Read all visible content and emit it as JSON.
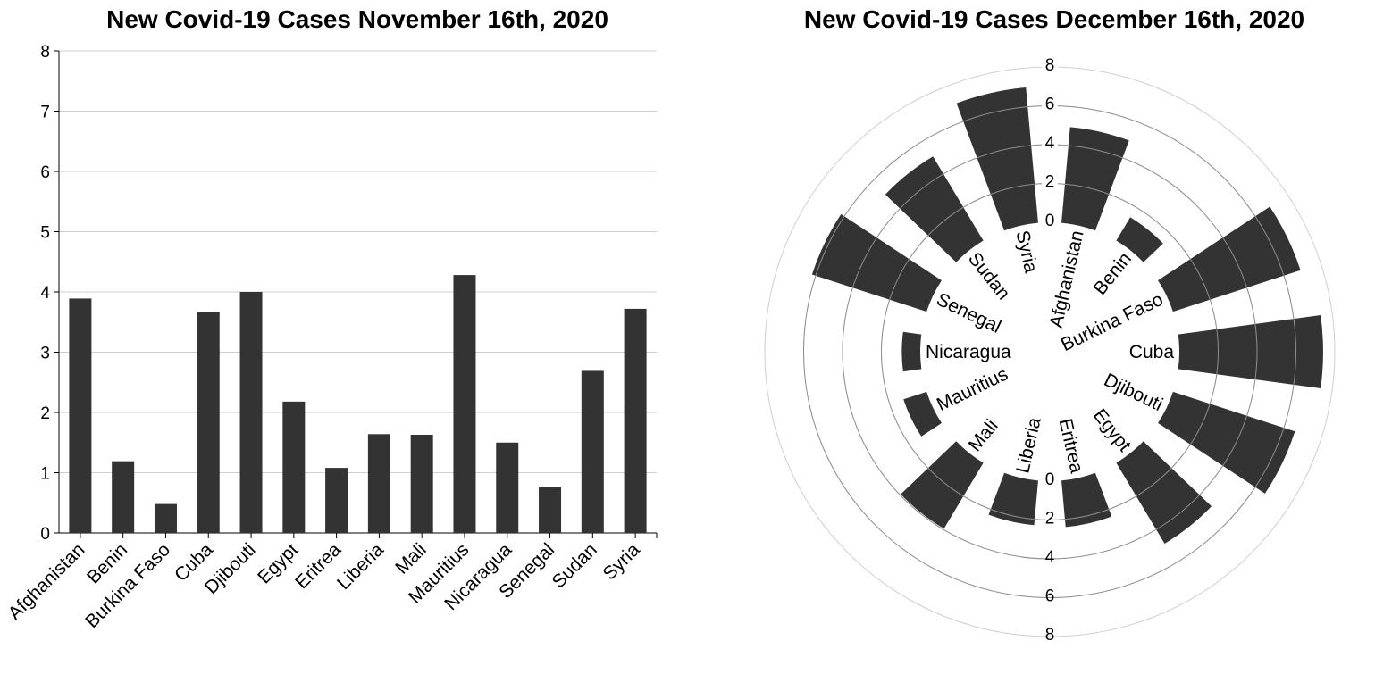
{
  "chart_data": [
    {
      "type": "bar",
      "title": "New Covid-19 Cases November 16th, 2020",
      "xlabel": "",
      "ylabel": "",
      "ylim": [
        0,
        8
      ],
      "yticks": [
        "0",
        "1",
        "2",
        "3",
        "4",
        "5",
        "6",
        "7",
        "8"
      ],
      "grid": true,
      "bar_color": "#333333",
      "categories": [
        "Afghanistan",
        "Benin",
        "Burkina Faso",
        "Cuba",
        "Djibouti",
        "Egypt",
        "Eritrea",
        "Liberia",
        "Mali",
        "Mauritius",
        "Nicaragua",
        "Senegal",
        "Sudan",
        "Syria"
      ],
      "values": [
        3.89,
        1.19,
        0.48,
        3.67,
        4.0,
        2.18,
        1.08,
        1.64,
        1.63,
        4.28,
        1.5,
        0.76,
        2.69,
        3.72
      ]
    },
    {
      "type": "radial-bar",
      "title": "New Covid-19 Cases December 16th, 2020",
      "rlim": [
        0,
        8
      ],
      "rticks_upper": [
        "0",
        "2",
        "4",
        "6",
        "8"
      ],
      "rticks_lower": [
        "0",
        "2",
        "4",
        "6",
        "8"
      ],
      "grid": true,
      "bar_color": "#333333",
      "categories": [
        "Afghanistan",
        "Benin",
        "Burkina Faso",
        "Cuba",
        "Djibouti",
        "Egypt",
        "Eritrea",
        "Liberia",
        "Mali",
        "Mauritius",
        "Nicaragua",
        "Senegal",
        "Sudan",
        "Syria"
      ],
      "values": [
        4.95,
        1.4,
        6.9,
        7.4,
        6.6,
        4.85,
        2.4,
        2.3,
        3.95,
        1.25,
        0.95,
        6.2,
        5.05,
        7.0
      ]
    }
  ]
}
